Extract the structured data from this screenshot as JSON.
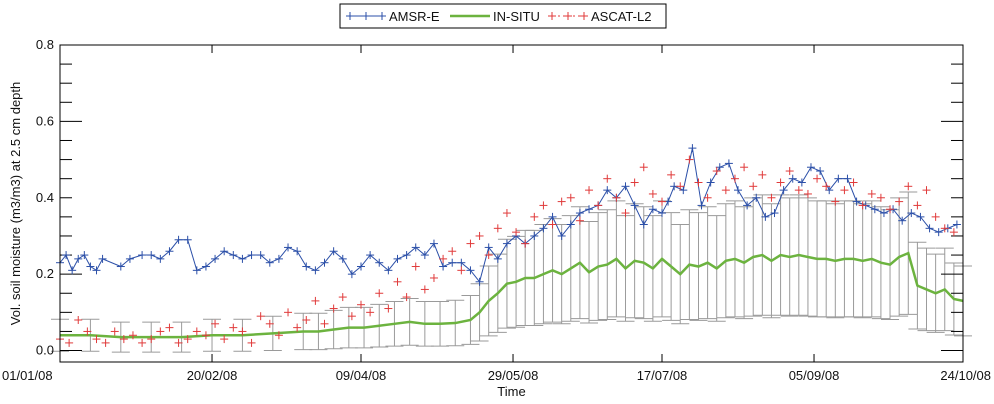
{
  "colors": {
    "amsr": "#2b4fa8",
    "insitu": "#6cb33f",
    "ascat": "#e03a3a",
    "err": "#9a9a9a",
    "axis": "#000000"
  },
  "chart_data": {
    "type": "line",
    "xlabel": "Time",
    "ylabel": "Vol. soil moisture (m3/m3) at 2.5 cm depth",
    "xlim": [
      0,
      297
    ],
    "ylim": [
      -0.03,
      0.8
    ],
    "xticks": [
      {
        "day": 0,
        "label": "01/01/08"
      },
      {
        "day": 50,
        "label": "20/02/08"
      },
      {
        "day": 99,
        "label": "09/04/08"
      },
      {
        "day": 149,
        "label": "29/05/08"
      },
      {
        "day": 198,
        "label": "17/07/08"
      },
      {
        "day": 248,
        "label": "05/09/08"
      },
      {
        "day": 297,
        "label": "24/10/08"
      }
    ],
    "yticks": [
      {
        "value": 0.0,
        "label": "0.0"
      },
      {
        "value": 0.2,
        "label": "0.2"
      },
      {
        "value": 0.4,
        "label": "0.4"
      },
      {
        "value": 0.6,
        "label": "0.6"
      },
      {
        "value": 0.8,
        "label": "0.8"
      }
    ],
    "legend_position": "top-center",
    "series": [
      {
        "name": "AMSR-E",
        "style": "line-plus",
        "x": [
          0,
          2,
          4,
          6,
          8,
          10,
          12,
          14,
          20,
          23,
          27,
          30,
          33,
          36,
          39,
          42,
          45,
          48,
          51,
          54,
          57,
          60,
          63,
          66,
          69,
          72,
          75,
          78,
          81,
          84,
          87,
          90,
          93,
          96,
          99,
          102,
          105,
          108,
          111,
          114,
          117,
          120,
          123,
          126,
          129,
          132,
          135,
          138,
          141,
          144,
          147,
          150,
          153,
          156,
          159,
          162,
          165,
          168,
          171,
          174,
          177,
          180,
          183,
          186,
          189,
          192,
          195,
          198,
          200,
          202,
          205,
          208,
          211,
          214,
          217,
          220,
          223,
          226,
          229,
          232,
          235,
          238,
          241,
          244,
          247,
          250,
          253,
          256,
          259,
          262,
          265,
          268,
          271,
          274,
          277,
          280,
          283,
          286,
          289,
          292,
          295
        ],
        "values": [
          0.23,
          0.25,
          0.21,
          0.24,
          0.25,
          0.22,
          0.21,
          0.24,
          0.22,
          0.24,
          0.25,
          0.25,
          0.24,
          0.26,
          0.29,
          0.29,
          0.21,
          0.22,
          0.24,
          0.26,
          0.25,
          0.24,
          0.25,
          0.25,
          0.23,
          0.24,
          0.27,
          0.26,
          0.22,
          0.21,
          0.23,
          0.26,
          0.24,
          0.2,
          0.22,
          0.25,
          0.23,
          0.21,
          0.24,
          0.25,
          0.27,
          0.25,
          0.28,
          0.22,
          0.23,
          0.23,
          0.21,
          0.18,
          0.27,
          0.24,
          0.28,
          0.3,
          0.28,
          0.3,
          0.32,
          0.35,
          0.3,
          0.33,
          0.36,
          0.37,
          0.38,
          0.42,
          0.4,
          0.43,
          0.38,
          0.33,
          0.37,
          0.36,
          0.39,
          0.43,
          0.42,
          0.53,
          0.38,
          0.44,
          0.48,
          0.49,
          0.42,
          0.38,
          0.4,
          0.35,
          0.36,
          0.42,
          0.45,
          0.44,
          0.48,
          0.47,
          0.42,
          0.45,
          0.45,
          0.39,
          0.38,
          0.37,
          0.36,
          0.37,
          0.34,
          0.36,
          0.35,
          0.32,
          0.31,
          0.32,
          0.33
        ]
      },
      {
        "name": "IN-SITU",
        "style": "line",
        "x": [
          0,
          10,
          20,
          30,
          40,
          50,
          60,
          70,
          80,
          85,
          90,
          95,
          100,
          105,
          110,
          115,
          120,
          125,
          130,
          135,
          138,
          141,
          144,
          147,
          150,
          153,
          156,
          159,
          162,
          165,
          168,
          171,
          174,
          177,
          180,
          183,
          186,
          189,
          192,
          195,
          198,
          201,
          204,
          207,
          210,
          213,
          216,
          219,
          222,
          225,
          228,
          231,
          234,
          237,
          240,
          243,
          246,
          249,
          252,
          255,
          258,
          261,
          264,
          267,
          270,
          273,
          276,
          279,
          282,
          285,
          288,
          291,
          294,
          297
        ],
        "values": [
          0.04,
          0.04,
          0.035,
          0.035,
          0.035,
          0.04,
          0.04,
          0.045,
          0.05,
          0.05,
          0.055,
          0.06,
          0.06,
          0.065,
          0.07,
          0.075,
          0.07,
          0.07,
          0.072,
          0.08,
          0.1,
          0.13,
          0.15,
          0.175,
          0.18,
          0.19,
          0.19,
          0.2,
          0.21,
          0.2,
          0.215,
          0.23,
          0.205,
          0.22,
          0.225,
          0.24,
          0.215,
          0.235,
          0.23,
          0.215,
          0.24,
          0.22,
          0.2,
          0.225,
          0.22,
          0.23,
          0.215,
          0.235,
          0.24,
          0.23,
          0.245,
          0.25,
          0.235,
          0.25,
          0.245,
          0.25,
          0.245,
          0.24,
          0.24,
          0.235,
          0.24,
          0.24,
          0.235,
          0.24,
          0.23,
          0.225,
          0.245,
          0.255,
          0.17,
          0.16,
          0.15,
          0.16,
          0.135,
          0.13
        ]
      },
      {
        "name": "ASCAT-L2",
        "style": "scatter-plus",
        "x": [
          0,
          3,
          6,
          9,
          12,
          15,
          18,
          21,
          24,
          27,
          30,
          33,
          36,
          39,
          42,
          45,
          48,
          51,
          54,
          57,
          60,
          63,
          66,
          69,
          72,
          75,
          78,
          81,
          84,
          87,
          90,
          93,
          96,
          99,
          102,
          105,
          108,
          111,
          114,
          117,
          120,
          123,
          126,
          129,
          132,
          135,
          138,
          141,
          144,
          147,
          150,
          153,
          156,
          159,
          162,
          165,
          168,
          171,
          174,
          177,
          180,
          183,
          186,
          189,
          192,
          195,
          198,
          201,
          204,
          207,
          210,
          213,
          216,
          219,
          222,
          225,
          228,
          231,
          234,
          237,
          240,
          243,
          246,
          249,
          252,
          255,
          258,
          261,
          264,
          267,
          270,
          273,
          276,
          279,
          282,
          285,
          288,
          291,
          294
        ],
        "values": [
          0.03,
          0.02,
          0.08,
          0.05,
          0.03,
          0.02,
          0.05,
          0.03,
          0.04,
          0.02,
          0.03,
          0.05,
          0.06,
          0.02,
          0.03,
          0.05,
          0.04,
          0.07,
          0.03,
          0.06,
          0.05,
          0.02,
          0.09,
          0.07,
          0.04,
          0.1,
          0.06,
          0.08,
          0.13,
          0.07,
          0.11,
          0.14,
          0.09,
          0.12,
          0.1,
          0.15,
          0.11,
          0.18,
          0.14,
          0.22,
          0.16,
          0.19,
          0.24,
          0.26,
          0.21,
          0.28,
          0.3,
          0.25,
          0.32,
          0.36,
          0.31,
          0.28,
          0.35,
          0.38,
          0.33,
          0.39,
          0.4,
          0.34,
          0.42,
          0.38,
          0.45,
          0.4,
          0.36,
          0.44,
          0.48,
          0.41,
          0.39,
          0.46,
          0.43,
          0.5,
          0.44,
          0.4,
          0.47,
          0.42,
          0.45,
          0.48,
          0.43,
          0.46,
          0.4,
          0.44,
          0.47,
          0.42,
          0.41,
          0.45,
          0.43,
          0.39,
          0.42,
          0.44,
          0.38,
          0.41,
          0.4,
          0.37,
          0.39,
          0.43,
          0.38,
          0.42,
          0.35,
          0.32,
          0.31
        ]
      }
    ]
  }
}
